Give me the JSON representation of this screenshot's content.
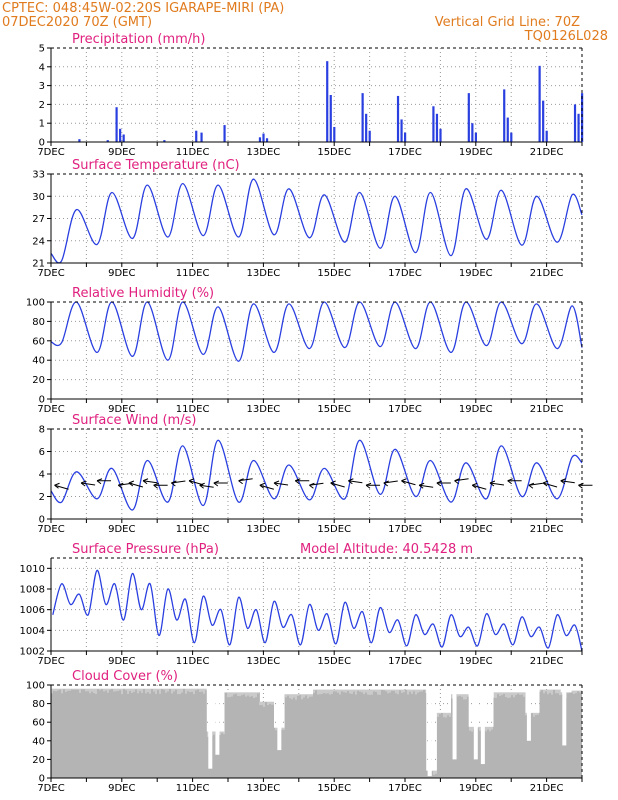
{
  "header": {
    "left_line1": "CPTEC:   048:45W-02:20S   IGARAPE-MIRI (PA)",
    "left_line2": "07DEC2020 70Z (GMT)",
    "right_line1": "Vertical Grid Line: 70Z",
    "right_line2": "TQ0126L028"
  },
  "colors": {
    "header": "#e07b1e",
    "title": "#e0217f",
    "line": "#2a3fe0",
    "bar": "#2a3fe0",
    "cloud": "#b4b4b4"
  },
  "chart_data": [
    {
      "type": "bar",
      "title": "Precipitation (mm/h)",
      "ylim": [
        0,
        5
      ],
      "yticks": [
        0,
        1,
        2,
        3,
        4,
        5
      ],
      "xticks": [
        "7DEC",
        "9DEC",
        "11DEC",
        "13DEC",
        "15DEC",
        "17DEC",
        "19DEC",
        "21DEC"
      ],
      "xrange_days": [
        7,
        22
      ],
      "events": [
        {
          "day": 7.8,
          "value": 0.15
        },
        {
          "day": 8.6,
          "value": 0.1
        },
        {
          "day": 8.85,
          "value": 1.85
        },
        {
          "day": 8.95,
          "value": 0.7
        },
        {
          "day": 9.05,
          "value": 0.4
        },
        {
          "day": 10.2,
          "value": 0.1
        },
        {
          "day": 11.1,
          "value": 0.6
        },
        {
          "day": 11.25,
          "value": 0.5
        },
        {
          "day": 11.9,
          "value": 0.9
        },
        {
          "day": 12.9,
          "value": 0.25
        },
        {
          "day": 13.0,
          "value": 0.45
        },
        {
          "day": 13.1,
          "value": 0.2
        },
        {
          "day": 14.8,
          "value": 4.3
        },
        {
          "day": 14.9,
          "value": 2.5
        },
        {
          "day": 15.0,
          "value": 0.8
        },
        {
          "day": 15.8,
          "value": 2.6
        },
        {
          "day": 15.9,
          "value": 1.5
        },
        {
          "day": 16.0,
          "value": 0.6
        },
        {
          "day": 16.8,
          "value": 2.45
        },
        {
          "day": 16.9,
          "value": 1.2
        },
        {
          "day": 17.0,
          "value": 0.5
        },
        {
          "day": 17.8,
          "value": 1.9
        },
        {
          "day": 17.9,
          "value": 1.5
        },
        {
          "day": 18.0,
          "value": 0.7
        },
        {
          "day": 18.8,
          "value": 2.6
        },
        {
          "day": 18.9,
          "value": 1.0
        },
        {
          "day": 19.0,
          "value": 0.5
        },
        {
          "day": 19.8,
          "value": 2.8
        },
        {
          "day": 19.9,
          "value": 1.3
        },
        {
          "day": 20.0,
          "value": 0.5
        },
        {
          "day": 20.8,
          "value": 4.05
        },
        {
          "day": 20.9,
          "value": 2.2
        },
        {
          "day": 21.0,
          "value": 0.6
        },
        {
          "day": 21.8,
          "value": 2.0
        },
        {
          "day": 21.9,
          "value": 1.5
        },
        {
          "day": 22.0,
          "value": 2.6
        }
      ]
    },
    {
      "type": "line",
      "title": "Surface Temperature (nC)",
      "ylim": [
        21,
        33
      ],
      "yticks": [
        21,
        24,
        27,
        30,
        33
      ],
      "xticks": [
        "7DEC",
        "9DEC",
        "11DEC",
        "13DEC",
        "15DEC",
        "17DEC",
        "19DEC",
        "21DEC"
      ],
      "xrange_days": [
        7,
        22
      ],
      "daily_min": [
        21.3,
        23.5,
        24.3,
        24.5,
        24.7,
        24.5,
        24.8,
        24.4,
        23.8,
        23.0,
        22.4,
        22.0,
        24.2,
        23.4,
        23.8,
        24.5
      ],
      "daily_max": [
        28.2,
        30.5,
        31.5,
        31.7,
        31.5,
        32.3,
        31.0,
        30.2,
        30.5,
        30.0,
        30.5,
        31.0,
        30.8,
        30.0,
        30.2,
        30.5
      ]
    },
    {
      "type": "line",
      "title": "Relative Humidity (%)",
      "ylim": [
        0,
        100
      ],
      "yticks": [
        0,
        20,
        40,
        60,
        80,
        100
      ],
      "xticks": [
        "7DEC",
        "9DEC",
        "11DEC",
        "13DEC",
        "15DEC",
        "17DEC",
        "19DEC",
        "21DEC"
      ],
      "xrange_days": [
        7,
        22
      ],
      "daily_min": [
        58,
        48,
        44,
        40,
        46,
        39,
        48,
        52,
        53,
        54,
        52,
        48,
        55,
        57,
        52,
        50
      ],
      "daily_max": [
        100,
        100,
        100,
        100,
        95,
        98,
        98,
        100,
        100,
        100,
        100,
        100,
        100,
        98,
        96,
        100
      ]
    },
    {
      "type": "line",
      "title": "Surface Wind (m/s)",
      "ylim": [
        0,
        8
      ],
      "yticks": [
        0,
        2,
        4,
        6,
        8
      ],
      "xticks": [
        "7DEC",
        "9DEC",
        "11DEC",
        "13DEC",
        "15DEC",
        "17DEC",
        "19DEC",
        "21DEC"
      ],
      "xrange_days": [
        7,
        22
      ],
      "daily_min": [
        1.5,
        1.8,
        0.8,
        1.5,
        1.2,
        1.5,
        1.8,
        1.7,
        1.8,
        2.2,
        2.0,
        1.5,
        1.8,
        2.0,
        1.8,
        2.0
      ],
      "daily_max": [
        4.2,
        4.5,
        5.2,
        6.5,
        7.0,
        5.2,
        4.8,
        4.5,
        7.0,
        6.2,
        5.2,
        5.0,
        6.5,
        5.0,
        5.5,
        5.0
      ],
      "vector_days": [
        7.1,
        7.85,
        8.3,
        8.9,
        9.2,
        9.6,
        9.9,
        10.4,
        10.9,
        11.2,
        11.6,
        12.3,
        12.9,
        13.3,
        13.9,
        14.3,
        14.9,
        15.4,
        15.9,
        16.4,
        16.9,
        17.4,
        17.9,
        18.4,
        18.9,
        19.4,
        19.9,
        20.5,
        20.9,
        21.4,
        21.9
      ]
    },
    {
      "type": "line",
      "title": "Surface Pressure (hPa)",
      "annotation": "Model Altitude: 40.5428 m",
      "ylim": [
        1002,
        1011
      ],
      "yticks": [
        1002,
        1004,
        1006,
        1008,
        1010
      ],
      "xticks": [
        "7DEC",
        "9DEC",
        "11DEC",
        "13DEC",
        "15DEC",
        "17DEC",
        "19DEC",
        "21DEC"
      ],
      "xrange_days": [
        7,
        22
      ],
      "primary_max": [
        1008.5,
        1009.8,
        1009.5,
        1008.0,
        1007.3,
        1007.2,
        1006.8,
        1006.5,
        1006.7,
        1006.2,
        1005.5,
        1005.5,
        1005.6,
        1005.3,
        1005.5,
        1006.0
      ],
      "primary_min": [
        1005.5,
        1005.5,
        1005.0,
        1003.5,
        1002.8,
        1002.6,
        1002.8,
        1002.6,
        1002.7,
        1002.8,
        1002.5,
        1002.4,
        1002.5,
        1002.6,
        1002.3,
        1002.0
      ],
      "secondary_max": [
        1007.5,
        1008.5,
        1008.5,
        1007.0,
        1006.0,
        1006.0,
        1005.5,
        1005.6,
        1005.8,
        1005.0,
        1004.6,
        1004.3,
        1004.6,
        1004.3,
        1004.5,
        1004.5
      ],
      "secondary_min": [
        1006.5,
        1006.5,
        1006.0,
        1005.0,
        1004.5,
        1004.2,
        1004.3,
        1004.0,
        1004.2,
        1003.8,
        1003.6,
        1003.4,
        1003.6,
        1003.4,
        1003.5,
        1003.5
      ]
    },
    {
      "type": "area",
      "title": "Cloud Cover (%)",
      "ylim": [
        0,
        100
      ],
      "yticks": [
        0,
        20,
        40,
        60,
        80,
        100
      ],
      "xticks": [
        "7DEC",
        "9DEC",
        "11DEC",
        "13DEC",
        "15DEC",
        "17DEC",
        "19DEC",
        "21DEC"
      ],
      "xrange_days": [
        7,
        22
      ],
      "segments": [
        {
          "from": 7.0,
          "to": 11.4,
          "value": 96
        },
        {
          "from": 11.4,
          "to": 11.9,
          "value": 50
        },
        {
          "from": 11.9,
          "to": 12.9,
          "value": 92
        },
        {
          "from": 12.9,
          "to": 13.3,
          "value": 82
        },
        {
          "from": 13.3,
          "to": 13.6,
          "value": 54
        },
        {
          "from": 13.6,
          "to": 14.4,
          "value": 90
        },
        {
          "from": 14.4,
          "to": 17.6,
          "value": 95
        },
        {
          "from": 17.6,
          "to": 17.9,
          "value": 8
        },
        {
          "from": 17.9,
          "to": 18.3,
          "value": 70
        },
        {
          "from": 18.3,
          "to": 18.8,
          "value": 90
        },
        {
          "from": 18.8,
          "to": 19.5,
          "value": 55
        },
        {
          "from": 19.5,
          "to": 20.4,
          "value": 92
        },
        {
          "from": 20.4,
          "to": 20.8,
          "value": 70
        },
        {
          "from": 20.8,
          "to": 21.4,
          "value": 95
        },
        {
          "from": 21.4,
          "to": 21.7,
          "value": 92
        },
        {
          "from": 21.7,
          "to": 22.0,
          "value": 94
        }
      ],
      "dips": [
        {
          "day": 11.5,
          "value": 10
        },
        {
          "day": 11.7,
          "value": 25
        },
        {
          "day": 13.45,
          "value": 30
        },
        {
          "day": 17.7,
          "value": 2
        },
        {
          "day": 18.4,
          "value": 20
        },
        {
          "day": 19.0,
          "value": 20
        },
        {
          "day": 19.2,
          "value": 15
        },
        {
          "day": 20.5,
          "value": 40
        },
        {
          "day": 21.5,
          "value": 35
        }
      ]
    }
  ]
}
